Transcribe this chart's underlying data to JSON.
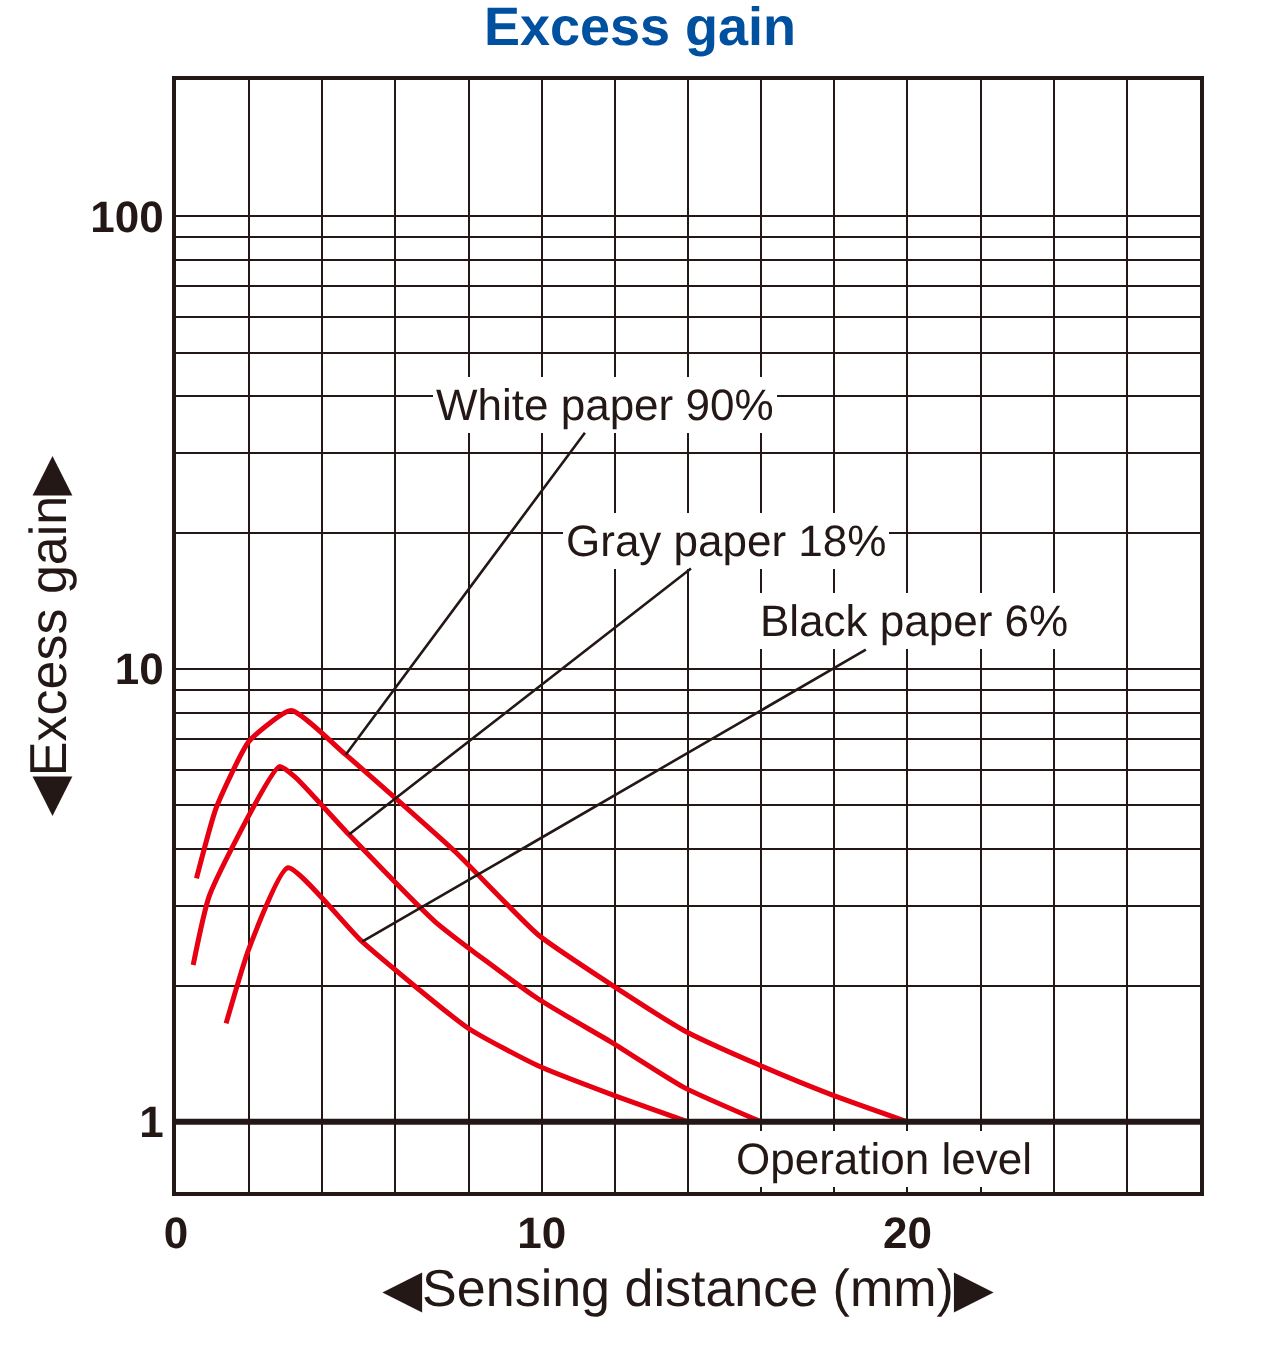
{
  "chart_data": {
    "type": "line",
    "title": "Excess gain",
    "xlabel": "◀Sensing distance (mm)▶",
    "ylabel": "◀Excess gain▶",
    "log": "y",
    "grid": true,
    "marker": "none",
    "line_style": "solid",
    "xlim": [
      0,
      28
    ],
    "xticks": [
      0,
      {
        "value": 2,
        "label": null
      },
      {
        "value": 4,
        "label": null
      },
      {
        "value": 6,
        "label": null
      },
      {
        "value": 8,
        "label": null
      },
      10,
      {
        "value": 12,
        "label": null
      },
      {
        "value": 14,
        "label": null
      },
      {
        "value": 16,
        "label": null
      },
      {
        "value": 18,
        "label": null
      },
      20,
      {
        "value": 22,
        "label": null
      },
      {
        "value": 24,
        "label": null
      },
      {
        "value": 26,
        "label": null
      }
    ],
    "ylim": [
      0.7,
      200
    ],
    "yticks": [
      1,
      {
        "value": 2,
        "label": null
      },
      {
        "value": 3,
        "label": null
      },
      {
        "value": 4,
        "label": null
      },
      {
        "value": 5,
        "label": null
      },
      {
        "value": 6,
        "label": null
      },
      {
        "value": 7,
        "label": null
      },
      {
        "value": 8,
        "label": null
      },
      {
        "value": 9,
        "label": null
      },
      10,
      {
        "value": 20,
        "label": null
      },
      {
        "value": 30,
        "label": null
      },
      {
        "value": 40,
        "label": null
      },
      {
        "value": 50,
        "label": null
      },
      {
        "value": 60,
        "label": null
      },
      {
        "value": 70,
        "label": null
      },
      {
        "value": 80,
        "label": null
      },
      {
        "value": 90,
        "label": null
      },
      100
    ],
    "series": [
      {
        "color": "#e60012",
        "x": [
          0.56,
          1.1,
          2.0,
          3.15,
          4.64,
          7.62,
          9.9,
          11.9,
          13.9,
          15.9,
          17.9,
          20
        ],
        "values": [
          3.45,
          4.94,
          6.93,
          8.1,
          6.47,
          3.96,
          2.59,
          2.01,
          1.59,
          1.34,
          1.15,
          1.0
        ]
      },
      {
        "color": "#e60012",
        "x": [
          0.47,
          0.92,
          2.83,
          3.28,
          4.73,
          7.08,
          9.9,
          11.9,
          13.9,
          16
        ],
        "values": [
          2.22,
          3.17,
          6.09,
          5.75,
          4.31,
          2.77,
          1.87,
          1.5,
          1.19,
          1.0
        ]
      },
      {
        "color": "#e60012",
        "x": [
          1.37,
          2.0,
          3.06,
          5.09,
          7.99,
          9.9,
          11.9,
          14
        ],
        "values": [
          1.65,
          2.42,
          3.64,
          2.5,
          1.61,
          1.33,
          1.15,
          1.0
        ]
      }
    ],
    "annotations": [
      {
        "text": "White paper 90%",
        "x": 4.64,
        "y": 6.47
      },
      {
        "text": "Gray paper 18%",
        "x": 4.73,
        "y": 4.31
      },
      {
        "text": "Black paper 6%",
        "x": 5.09,
        "y": 2.5
      }
    ],
    "ref_lines": [
      {
        "axis": "y",
        "value": 1,
        "label": "Operation level"
      }
    ]
  }
}
